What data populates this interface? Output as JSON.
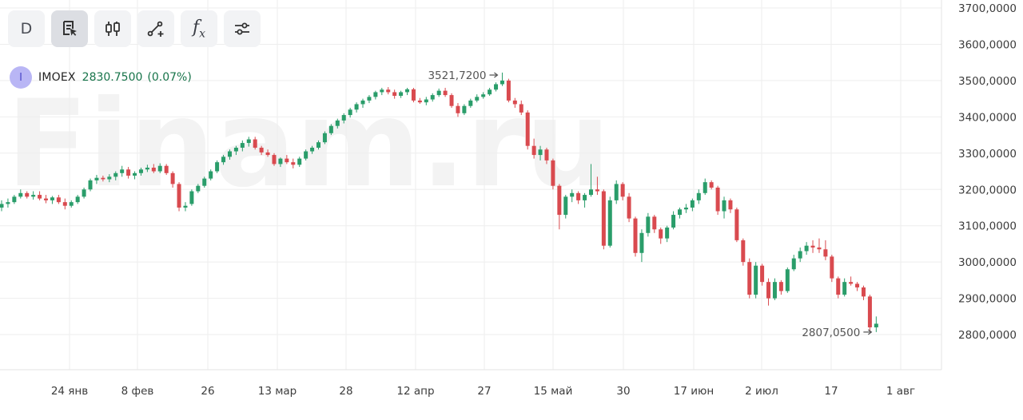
{
  "toolbar": {
    "period_label": "D",
    "buttons": [
      {
        "name": "period-button",
        "icon": "text-D"
      },
      {
        "name": "chart-draw-button",
        "icon": "document-pointer-icon"
      },
      {
        "name": "candles-button",
        "icon": "candlestick-icon"
      },
      {
        "name": "line-tool-button",
        "icon": "line-add-icon"
      },
      {
        "name": "indicators-button",
        "icon": "function-fx-icon"
      },
      {
        "name": "settings-button",
        "icon": "sliders-icon"
      }
    ]
  },
  "legend": {
    "letter": "I",
    "ticker": "IMOEX",
    "price": "2830.7500",
    "change": "(0.07%)"
  },
  "watermark": "Finam.ru",
  "colors": {
    "up": "#2a9d6a",
    "down": "#d94a4f",
    "grid": "#eeeeee",
    "axis_text": "#3c3c3c",
    "legend_accent": "#17744a"
  },
  "chart_data": {
    "type": "candlestick",
    "ticker": "IMOEX",
    "timeframe": "D",
    "x_tick_labels": [
      "24 янв",
      "8 фев",
      "26",
      "13 мар",
      "28",
      "12 апр",
      "27",
      "15 май",
      "30",
      "17 июн",
      "2 июл",
      "17",
      "1 авг"
    ],
    "y_tick_labels": [
      "3700,0000",
      "3600,0000",
      "3500,0000",
      "3400,0000",
      "3300,0000",
      "3200,0000",
      "3100,0000",
      "3000,0000",
      "2900,0000",
      "2800,0000"
    ],
    "ylim": [
      2757,
      3707
    ],
    "annotations": [
      {
        "label": "3521,7200",
        "value": 3521.72,
        "kind": "max"
      },
      {
        "label": "2807,0500",
        "value": 2807.05,
        "kind": "min"
      }
    ],
    "series": [
      {
        "name": "IMOEX",
        "candles": [
          [
            3150,
            3170,
            3140,
            3160
          ],
          [
            3160,
            3175,
            3150,
            3165
          ],
          [
            3165,
            3185,
            3160,
            3180
          ],
          [
            3180,
            3200,
            3175,
            3190
          ],
          [
            3190,
            3195,
            3175,
            3180
          ],
          [
            3180,
            3195,
            3172,
            3185
          ],
          [
            3185,
            3195,
            3170,
            3175
          ],
          [
            3175,
            3185,
            3162,
            3170
          ],
          [
            3170,
            3182,
            3160,
            3178
          ],
          [
            3178,
            3185,
            3160,
            3165
          ],
          [
            3165,
            3175,
            3145,
            3155
          ],
          [
            3155,
            3170,
            3150,
            3165
          ],
          [
            3165,
            3185,
            3160,
            3180
          ],
          [
            3180,
            3205,
            3175,
            3200
          ],
          [
            3200,
            3230,
            3195,
            3225
          ],
          [
            3225,
            3240,
            3215,
            3232
          ],
          [
            3232,
            3238,
            3222,
            3228
          ],
          [
            3228,
            3242,
            3220,
            3235
          ],
          [
            3235,
            3250,
            3225,
            3245
          ],
          [
            3245,
            3265,
            3235,
            3255
          ],
          [
            3255,
            3262,
            3230,
            3238
          ],
          [
            3238,
            3250,
            3228,
            3245
          ],
          [
            3245,
            3260,
            3238,
            3255
          ],
          [
            3255,
            3268,
            3248,
            3260
          ],
          [
            3260,
            3270,
            3245,
            3250
          ],
          [
            3250,
            3272,
            3245,
            3265
          ],
          [
            3265,
            3270,
            3240,
            3245
          ],
          [
            3245,
            3250,
            3205,
            3215
          ],
          [
            3215,
            3220,
            3140,
            3150
          ],
          [
            3150,
            3165,
            3140,
            3155
          ],
          [
            3160,
            3200,
            3155,
            3195
          ],
          [
            3195,
            3215,
            3190,
            3210
          ],
          [
            3210,
            3235,
            3205,
            3230
          ],
          [
            3230,
            3255,
            3225,
            3250
          ],
          [
            3250,
            3280,
            3245,
            3275
          ],
          [
            3275,
            3295,
            3268,
            3290
          ],
          [
            3290,
            3310,
            3282,
            3305
          ],
          [
            3305,
            3320,
            3295,
            3315
          ],
          [
            3315,
            3335,
            3305,
            3328
          ],
          [
            3328,
            3345,
            3318,
            3338
          ],
          [
            3338,
            3345,
            3310,
            3315
          ],
          [
            3315,
            3320,
            3295,
            3302
          ],
          [
            3302,
            3310,
            3290,
            3295
          ],
          [
            3295,
            3300,
            3265,
            3270
          ],
          [
            3270,
            3288,
            3262,
            3285
          ],
          [
            3285,
            3295,
            3270,
            3275
          ],
          [
            3275,
            3285,
            3258,
            3268
          ],
          [
            3268,
            3290,
            3262,
            3285
          ],
          [
            3285,
            3310,
            3280,
            3305
          ],
          [
            3305,
            3320,
            3298,
            3315
          ],
          [
            3315,
            3335,
            3310,
            3330
          ],
          [
            3330,
            3360,
            3325,
            3355
          ],
          [
            3355,
            3380,
            3350,
            3375
          ],
          [
            3375,
            3395,
            3368,
            3390
          ],
          [
            3390,
            3410,
            3382,
            3405
          ],
          [
            3405,
            3425,
            3398,
            3420
          ],
          [
            3420,
            3440,
            3412,
            3435
          ],
          [
            3435,
            3450,
            3425,
            3445
          ],
          [
            3445,
            3460,
            3438,
            3455
          ],
          [
            3455,
            3472,
            3448,
            3468
          ],
          [
            3468,
            3480,
            3460,
            3475
          ],
          [
            3475,
            3482,
            3462,
            3468
          ],
          [
            3468,
            3475,
            3450,
            3458
          ],
          [
            3458,
            3472,
            3452,
            3468
          ],
          [
            3468,
            3480,
            3460,
            3476
          ],
          [
            3476,
            3480,
            3440,
            3445
          ],
          [
            3445,
            3452,
            3436,
            3440
          ],
          [
            3440,
            3455,
            3432,
            3448
          ],
          [
            3448,
            3465,
            3442,
            3460
          ],
          [
            3460,
            3478,
            3455,
            3472
          ],
          [
            3472,
            3480,
            3455,
            3460
          ],
          [
            3460,
            3465,
            3425,
            3430
          ],
          [
            3430,
            3438,
            3400,
            3410
          ],
          [
            3410,
            3435,
            3405,
            3430
          ],
          [
            3430,
            3450,
            3425,
            3445
          ],
          [
            3445,
            3462,
            3440,
            3455
          ],
          [
            3455,
            3468,
            3450,
            3462
          ],
          [
            3462,
            3480,
            3458,
            3475
          ],
          [
            3475,
            3495,
            3470,
            3490
          ],
          [
            3490,
            3522,
            3485,
            3500
          ],
          [
            3500,
            3505,
            3440,
            3445
          ],
          [
            3445,
            3452,
            3425,
            3435
          ],
          [
            3435,
            3445,
            3405,
            3412
          ],
          [
            3412,
            3418,
            3310,
            3320
          ],
          [
            3320,
            3340,
            3285,
            3295
          ],
          [
            3295,
            3320,
            3280,
            3310
          ],
          [
            3310,
            3315,
            3270,
            3280
          ],
          [
            3280,
            3285,
            3200,
            3210
          ],
          [
            3210,
            3215,
            3090,
            3130
          ],
          [
            3130,
            3185,
            3120,
            3180
          ],
          [
            3180,
            3200,
            3165,
            3190
          ],
          [
            3190,
            3195,
            3160,
            3170
          ],
          [
            3170,
            3190,
            3150,
            3185
          ],
          [
            3185,
            3270,
            3180,
            3200
          ],
          [
            3200,
            3235,
            3185,
            3195
          ],
          [
            3195,
            3200,
            3035,
            3045
          ],
          [
            3045,
            3180,
            3040,
            3170
          ],
          [
            3170,
            3225,
            3160,
            3215
          ],
          [
            3215,
            3220,
            3170,
            3180
          ],
          [
            3180,
            3190,
            3110,
            3120
          ],
          [
            3120,
            3125,
            3015,
            3025
          ],
          [
            3025,
            3090,
            3000,
            3080
          ],
          [
            3080,
            3135,
            3070,
            3125
          ],
          [
            3125,
            3130,
            3080,
            3090
          ],
          [
            3090,
            3095,
            3050,
            3065
          ],
          [
            3065,
            3100,
            3055,
            3095
          ],
          [
            3095,
            3140,
            3090,
            3130
          ],
          [
            3130,
            3150,
            3120,
            3145
          ],
          [
            3145,
            3160,
            3135,
            3150
          ],
          [
            3150,
            3175,
            3140,
            3170
          ],
          [
            3170,
            3200,
            3160,
            3190
          ],
          [
            3190,
            3230,
            3185,
            3220
          ],
          [
            3220,
            3225,
            3200,
            3205
          ],
          [
            3205,
            3210,
            3130,
            3140
          ],
          [
            3140,
            3180,
            3120,
            3170
          ],
          [
            3170,
            3175,
            3135,
            3145
          ],
          [
            3145,
            3150,
            3055,
            3060
          ],
          [
            3060,
            3065,
            2990,
            3000
          ],
          [
            3000,
            3010,
            2900,
            2910
          ],
          [
            2910,
            3000,
            2900,
            2990
          ],
          [
            2990,
            2995,
            2935,
            2945
          ],
          [
            2945,
            2955,
            2880,
            2900
          ],
          [
            2900,
            2955,
            2895,
            2945
          ],
          [
            2945,
            2950,
            2910,
            2920
          ],
          [
            2920,
            2985,
            2915,
            2980
          ],
          [
            2980,
            3020,
            2975,
            3010
          ],
          [
            3010,
            3040,
            3000,
            3030
          ],
          [
            3030,
            3055,
            3020,
            3045
          ],
          [
            3045,
            3060,
            3025,
            3040
          ],
          [
            3040,
            3065,
            3025,
            3035
          ],
          [
            3035,
            3060,
            3005,
            3015
          ],
          [
            3015,
            3020,
            2945,
            2955
          ],
          [
            2955,
            2960,
            2900,
            2910
          ],
          [
            2910,
            2955,
            2905,
            2945
          ],
          [
            2945,
            2960,
            2935,
            2940
          ],
          [
            2940,
            2945,
            2920,
            2930
          ],
          [
            2930,
            2935,
            2895,
            2905
          ],
          [
            2905,
            2910,
            2810,
            2820
          ],
          [
            2820,
            2850,
            2807,
            2830
          ]
        ]
      }
    ]
  }
}
